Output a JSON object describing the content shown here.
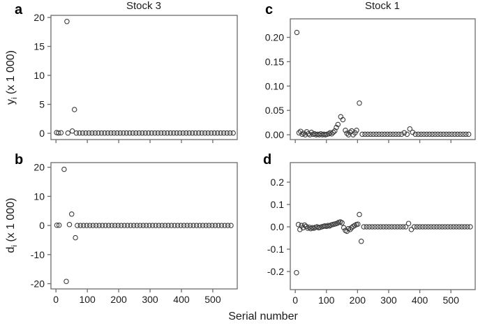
{
  "figure": {
    "xlabel": "Serial number",
    "marker": "open-circle",
    "colors": {
      "box": "#6b6b6b",
      "tick": "#6b6b6b",
      "point": "#3d3d3d",
      "text": "#1a1a1a"
    }
  },
  "chart_data": {
    "type": "scatter",
    "xlabel": "Serial number",
    "grid": false,
    "legend": null,
    "panels": [
      {
        "id": "a",
        "letter": "a",
        "title": "Stock 3",
        "ylabel": {
          "main": "y",
          "sub": "i",
          "rest": " (x 1 000)"
        },
        "xlim": [
          -16,
          578
        ],
        "ylim": [
          -1.08,
          20.36
        ],
        "xticks": [
          0,
          100,
          200,
          300,
          400,
          500
        ],
        "xtick_labels": [
          "0",
          "100",
          "200",
          "300",
          "400",
          "500"
        ],
        "show_xtick_labels": false,
        "yticks": [
          0,
          5,
          10,
          15,
          20
        ],
        "ytick_labels": [
          "0",
          "5",
          "10",
          "15",
          "20"
        ],
        "points": [
          [
            2,
            0.12
          ],
          [
            8,
            0.05
          ],
          [
            16,
            0.1
          ],
          [
            35,
            19.3
          ],
          [
            38,
            0.05
          ],
          [
            52,
            0.4
          ],
          [
            59,
            4.1
          ],
          [
            65,
            0.05
          ],
          [
            75,
            0.05
          ],
          [
            85,
            0.05
          ],
          [
            95,
            0.05
          ],
          [
            105,
            0.05
          ],
          [
            115,
            0.05
          ],
          [
            125,
            0.05
          ],
          [
            135,
            0.05
          ],
          [
            145,
            0.05
          ],
          [
            155,
            0.05
          ],
          [
            165,
            0.05
          ],
          [
            175,
            0.05
          ],
          [
            185,
            0.05
          ],
          [
            195,
            0.05
          ],
          [
            205,
            0.05
          ],
          [
            215,
            0.05
          ],
          [
            225,
            0.05
          ],
          [
            235,
            0.05
          ],
          [
            245,
            0.05
          ],
          [
            255,
            0.05
          ],
          [
            265,
            0.05
          ],
          [
            275,
            0.05
          ],
          [
            285,
            0.05
          ],
          [
            295,
            0.05
          ],
          [
            305,
            0.05
          ],
          [
            315,
            0.05
          ],
          [
            325,
            0.05
          ],
          [
            335,
            0.05
          ],
          [
            345,
            0.05
          ],
          [
            355,
            0.05
          ],
          [
            365,
            0.05
          ],
          [
            375,
            0.05
          ],
          [
            385,
            0.05
          ],
          [
            395,
            0.05
          ],
          [
            405,
            0.05
          ],
          [
            415,
            0.05
          ],
          [
            425,
            0.05
          ],
          [
            435,
            0.05
          ],
          [
            445,
            0.05
          ],
          [
            455,
            0.05
          ],
          [
            465,
            0.05
          ],
          [
            475,
            0.05
          ],
          [
            485,
            0.05
          ],
          [
            495,
            0.05
          ],
          [
            505,
            0.05
          ],
          [
            515,
            0.05
          ],
          [
            525,
            0.05
          ],
          [
            535,
            0.05
          ],
          [
            545,
            0.05
          ],
          [
            555,
            0.05
          ],
          [
            565,
            0.05
          ]
        ]
      },
      {
        "id": "b",
        "letter": "b",
        "title": "",
        "ylabel": {
          "main": "d",
          "sub": "i",
          "rest": " (x 1 000)"
        },
        "xlim": [
          -16,
          578
        ],
        "ylim": [
          -21.8,
          21.6
        ],
        "xticks": [
          0,
          100,
          200,
          300,
          400,
          500
        ],
        "xtick_labels": [
          "0",
          "100",
          "200",
          "300",
          "400",
          "500"
        ],
        "show_xtick_labels": true,
        "yticks": [
          -20,
          -10,
          0,
          10,
          20
        ],
        "ytick_labels": [
          "-20",
          "-10",
          "0",
          "10",
          "20"
        ],
        "points": [
          [
            3,
            0.1
          ],
          [
            10,
            0.1
          ],
          [
            26,
            19.3
          ],
          [
            33,
            -19.2
          ],
          [
            43,
            0.3
          ],
          [
            50,
            3.9
          ],
          [
            62,
            -4.2
          ],
          [
            68,
            0
          ],
          [
            78,
            0
          ],
          [
            88,
            0
          ],
          [
            98,
            0
          ],
          [
            108,
            0
          ],
          [
            118,
            0
          ],
          [
            128,
            0
          ],
          [
            138,
            0
          ],
          [
            148,
            0
          ],
          [
            158,
            0
          ],
          [
            168,
            0
          ],
          [
            178,
            0
          ],
          [
            188,
            0
          ],
          [
            198,
            0
          ],
          [
            208,
            0
          ],
          [
            218,
            0
          ],
          [
            228,
            0
          ],
          [
            238,
            0
          ],
          [
            248,
            0
          ],
          [
            258,
            0
          ],
          [
            268,
            0
          ],
          [
            278,
            0
          ],
          [
            288,
            0
          ],
          [
            298,
            0
          ],
          [
            308,
            0
          ],
          [
            318,
            0
          ],
          [
            328,
            0
          ],
          [
            338,
            0
          ],
          [
            348,
            0
          ],
          [
            358,
            0
          ],
          [
            368,
            0
          ],
          [
            378,
            0
          ],
          [
            388,
            0
          ],
          [
            398,
            0
          ],
          [
            408,
            0
          ],
          [
            418,
            0
          ],
          [
            428,
            0
          ],
          [
            438,
            0
          ],
          [
            448,
            0
          ],
          [
            458,
            0
          ],
          [
            468,
            0
          ],
          [
            478,
            0
          ],
          [
            488,
            0
          ],
          [
            498,
            0
          ],
          [
            508,
            0
          ],
          [
            518,
            0
          ],
          [
            528,
            0
          ],
          [
            538,
            0
          ],
          [
            548,
            0
          ],
          [
            558,
            0
          ]
        ]
      },
      {
        "id": "c",
        "letter": "c",
        "title": "Stock 1",
        "xlim": [
          -16,
          578
        ],
        "ylim": [
          -0.0099,
          0.238
        ],
        "xticks": [
          0,
          100,
          200,
          300,
          400,
          500
        ],
        "xtick_labels": [
          "0",
          "100",
          "200",
          "300",
          "400",
          "500"
        ],
        "show_xtick_labels": false,
        "yticks": [
          0.0,
          0.05,
          0.1,
          0.15,
          0.2
        ],
        "ytick_labels": [
          "0.00",
          "0.05",
          "0.10",
          "0.15",
          "0.20"
        ],
        "points": [
          [
            5,
            0.21
          ],
          [
            12,
            0.004
          ],
          [
            17,
            0.007
          ],
          [
            22,
            0.001
          ],
          [
            27,
            0.003
          ],
          [
            32,
            0.0
          ],
          [
            37,
            0.006
          ],
          [
            42,
            0.002
          ],
          [
            47,
            0.0
          ],
          [
            52,
            0.005
          ],
          [
            57,
            0.001
          ],
          [
            62,
            0.002
          ],
          [
            67,
            0.0
          ],
          [
            72,
            0.001
          ],
          [
            77,
            0.0
          ],
          [
            82,
            0.002
          ],
          [
            87,
            0.0
          ],
          [
            92,
            0.001
          ],
          [
            97,
            0.0
          ],
          [
            102,
            0.001
          ],
          [
            107,
            0.002
          ],
          [
            112,
            0.004
          ],
          [
            117,
            0.002
          ],
          [
            122,
            0.005
          ],
          [
            127,
            0.008
          ],
          [
            132,
            0.015
          ],
          [
            137,
            0.021
          ],
          [
            146,
            0.037
          ],
          [
            153,
            0.031
          ],
          [
            161,
            0.009
          ],
          [
            166,
            0.003
          ],
          [
            171,
            0.0
          ],
          [
            176,
            0.005
          ],
          [
            181,
            0.008
          ],
          [
            186,
            0.0
          ],
          [
            192,
            0.004
          ],
          [
            197,
            0.009
          ],
          [
            206,
            0.065
          ],
          [
            215,
            0.001
          ],
          [
            224,
            0.001
          ],
          [
            233,
            0.001
          ],
          [
            242,
            0.001
          ],
          [
            251,
            0.001
          ],
          [
            260,
            0.001
          ],
          [
            269,
            0.001
          ],
          [
            278,
            0.001
          ],
          [
            287,
            0.001
          ],
          [
            296,
            0.001
          ],
          [
            305,
            0.001
          ],
          [
            314,
            0.001
          ],
          [
            323,
            0.001
          ],
          [
            332,
            0.001
          ],
          [
            341,
            0.001
          ],
          [
            350,
            0.004
          ],
          [
            359,
            0.001
          ],
          [
            368,
            0.012
          ],
          [
            377,
            0.005
          ],
          [
            386,
            0.001
          ],
          [
            395,
            0.001
          ],
          [
            404,
            0.001
          ],
          [
            413,
            0.001
          ],
          [
            422,
            0.001
          ],
          [
            431,
            0.001
          ],
          [
            440,
            0.001
          ],
          [
            449,
            0.001
          ],
          [
            458,
            0.001
          ],
          [
            467,
            0.001
          ],
          [
            476,
            0.001
          ],
          [
            485,
            0.001
          ],
          [
            494,
            0.001
          ],
          [
            503,
            0.001
          ],
          [
            512,
            0.001
          ],
          [
            521,
            0.001
          ],
          [
            530,
            0.001
          ],
          [
            539,
            0.001
          ],
          [
            548,
            0.001
          ],
          [
            557,
            0.001
          ]
        ]
      },
      {
        "id": "d",
        "letter": "d",
        "title": "",
        "xlim": [
          -16,
          578
        ],
        "ylim": [
          -0.281,
          0.2875
        ],
        "xticks": [
          0,
          100,
          200,
          300,
          400,
          500
        ],
        "xtick_labels": [
          "0",
          "100",
          "200",
          "300",
          "400",
          "500"
        ],
        "show_xtick_labels": true,
        "yticks": [
          -0.2,
          -0.1,
          0.0,
          0.1,
          0.2
        ],
        "ytick_labels": [
          "-0.2",
          "-0.1",
          "0.0",
          "0.1",
          "0.2"
        ],
        "points": [
          [
            4,
            -0.205
          ],
          [
            10,
            0.01
          ],
          [
            15,
            -0.012
          ],
          [
            20,
            0.006
          ],
          [
            25,
            -0.004
          ],
          [
            30,
            0.008
          ],
          [
            35,
            0.002
          ],
          [
            40,
            -0.006
          ],
          [
            45,
            -0.002
          ],
          [
            50,
            -0.008
          ],
          [
            55,
            -0.004
          ],
          [
            60,
            -0.006
          ],
          [
            65,
            -0.002
          ],
          [
            70,
            0.0
          ],
          [
            75,
            -0.004
          ],
          [
            80,
            -0.002
          ],
          [
            85,
            0.0
          ],
          [
            90,
            0.002
          ],
          [
            95,
            0.004
          ],
          [
            100,
            0.002
          ],
          [
            105,
            0.006
          ],
          [
            110,
            0.004
          ],
          [
            115,
            0.008
          ],
          [
            120,
            0.01
          ],
          [
            125,
            0.012
          ],
          [
            130,
            0.014
          ],
          [
            135,
            0.016
          ],
          [
            140,
            0.02
          ],
          [
            145,
            0.022
          ],
          [
            150,
            0.018
          ],
          [
            156,
            -0.004
          ],
          [
            161,
            -0.016
          ],
          [
            166,
            -0.02
          ],
          [
            171,
            -0.008
          ],
          [
            176,
            -0.012
          ],
          [
            181,
            -0.004
          ],
          [
            186,
            0.002
          ],
          [
            191,
            0.006
          ],
          [
            196,
            0.01
          ],
          [
            201,
            0.012
          ],
          [
            206,
            0.055
          ],
          [
            212,
            -0.065
          ],
          [
            220,
            0
          ],
          [
            229,
            0
          ],
          [
            238,
            0
          ],
          [
            247,
            0
          ],
          [
            256,
            0
          ],
          [
            265,
            0
          ],
          [
            274,
            0
          ],
          [
            283,
            0
          ],
          [
            292,
            0
          ],
          [
            301,
            0
          ],
          [
            310,
            0
          ],
          [
            319,
            0
          ],
          [
            328,
            0
          ],
          [
            337,
            0
          ],
          [
            346,
            0
          ],
          [
            355,
            0
          ],
          [
            364,
            0.015
          ],
          [
            373,
            -0.012
          ],
          [
            382,
            0
          ],
          [
            391,
            0
          ],
          [
            400,
            0
          ],
          [
            409,
            0
          ],
          [
            418,
            0
          ],
          [
            427,
            0
          ],
          [
            436,
            0
          ],
          [
            445,
            0
          ],
          [
            454,
            0
          ],
          [
            463,
            0
          ],
          [
            472,
            0
          ],
          [
            481,
            0
          ],
          [
            490,
            0
          ],
          [
            499,
            0
          ],
          [
            508,
            0
          ],
          [
            517,
            0
          ],
          [
            526,
            0
          ],
          [
            535,
            0
          ],
          [
            544,
            0
          ],
          [
            553,
            0
          ],
          [
            562,
            0
          ]
        ]
      }
    ]
  }
}
